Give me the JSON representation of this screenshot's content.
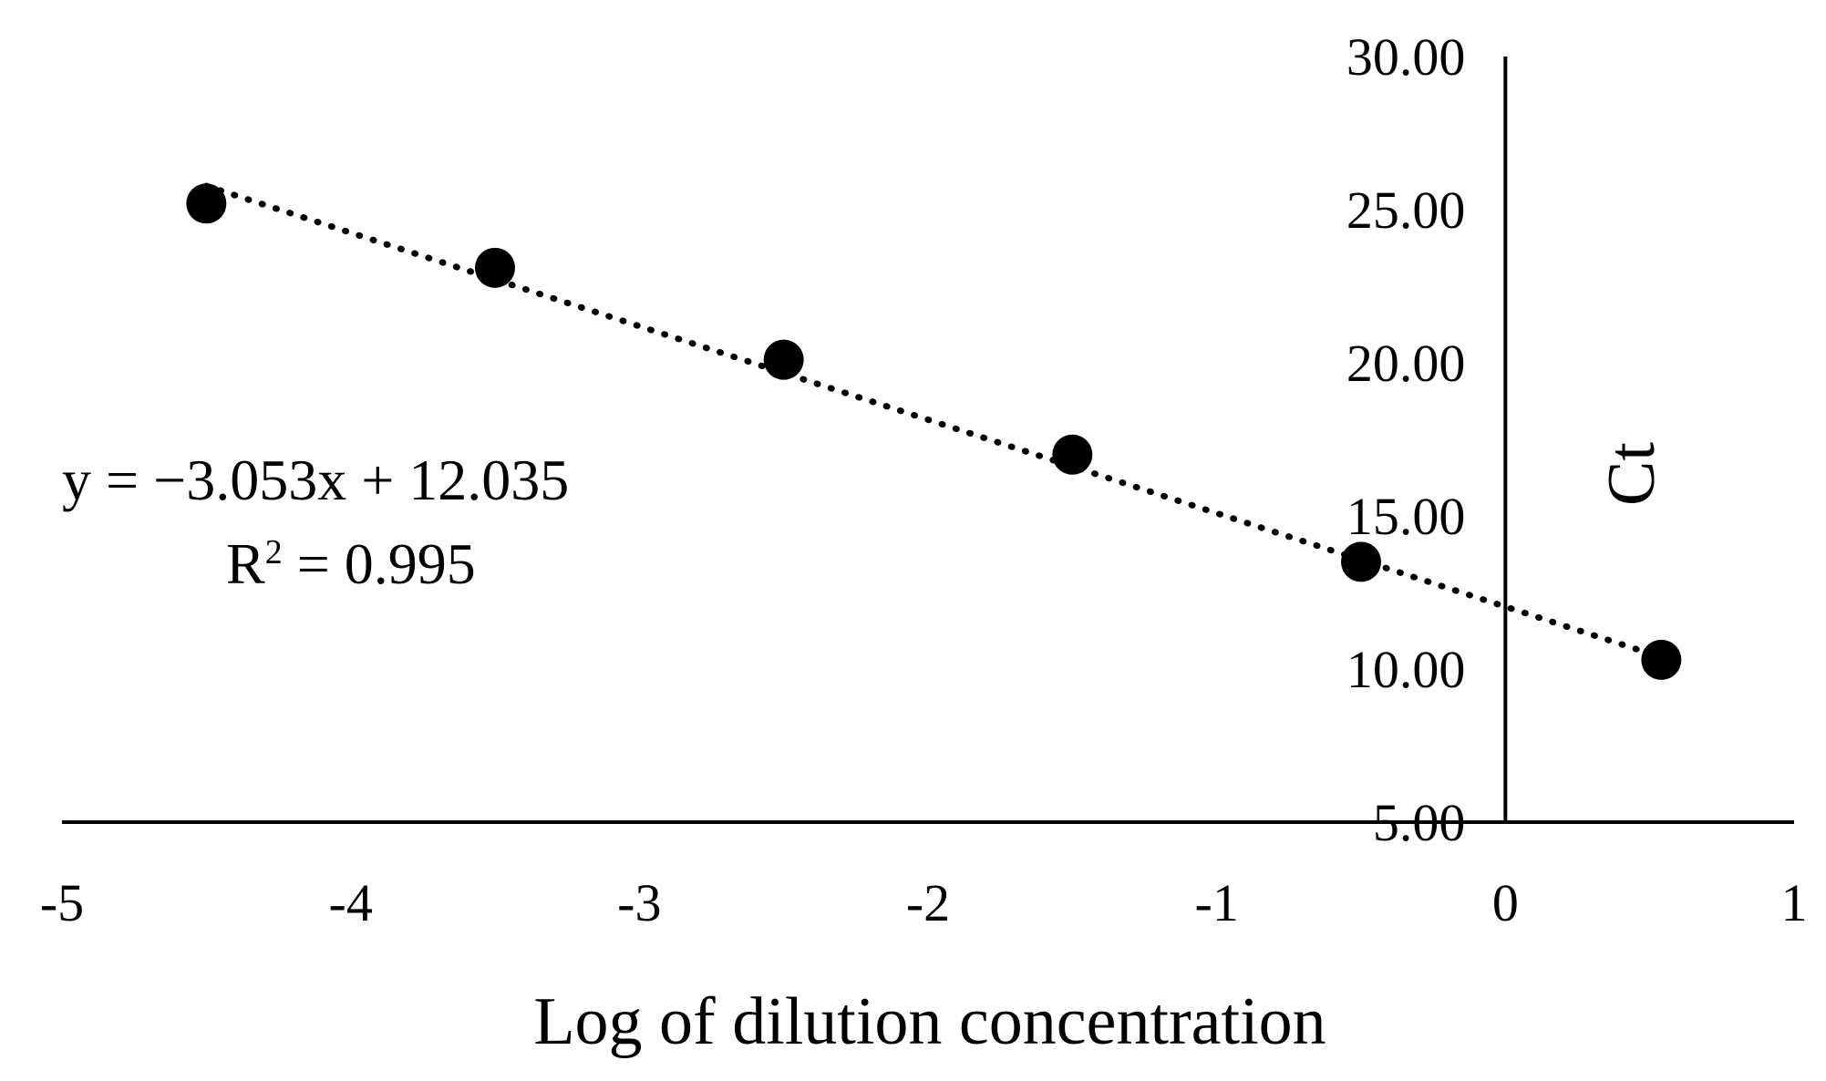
{
  "chart_data": {
    "type": "scatter",
    "title": "",
    "xlabel": "Log of dilution concentration",
    "ylabel": "Ct",
    "xlim": [
      -5,
      1
    ],
    "ylim": [
      5,
      30
    ],
    "x_ticks": [
      "-5",
      "-4",
      "-3",
      "-2",
      "-1",
      "0",
      "1"
    ],
    "y_ticks": [
      "5.00",
      "10.00",
      "15.00",
      "20.00",
      "25.00",
      "30.00"
    ],
    "grid": false,
    "legend": "none",
    "series": [
      {
        "x": [
          -4.5,
          -3.5,
          -2.5,
          -1.5,
          -0.5,
          0.54
        ],
        "y": [
          25.2,
          23.1,
          20.1,
          17.0,
          13.5,
          10.3
        ],
        "marker_color": "#000000"
      }
    ],
    "trendline": {
      "style": "dotted",
      "slope": -3.053,
      "intercept": 12.035,
      "x_range": [
        -4.5,
        0.54
      ]
    },
    "annotations": {
      "equation": "y = −3.053x + 12.035",
      "r2_prefix": "R",
      "r2_sup": "2",
      "r2_rest": " = 0.995"
    }
  }
}
